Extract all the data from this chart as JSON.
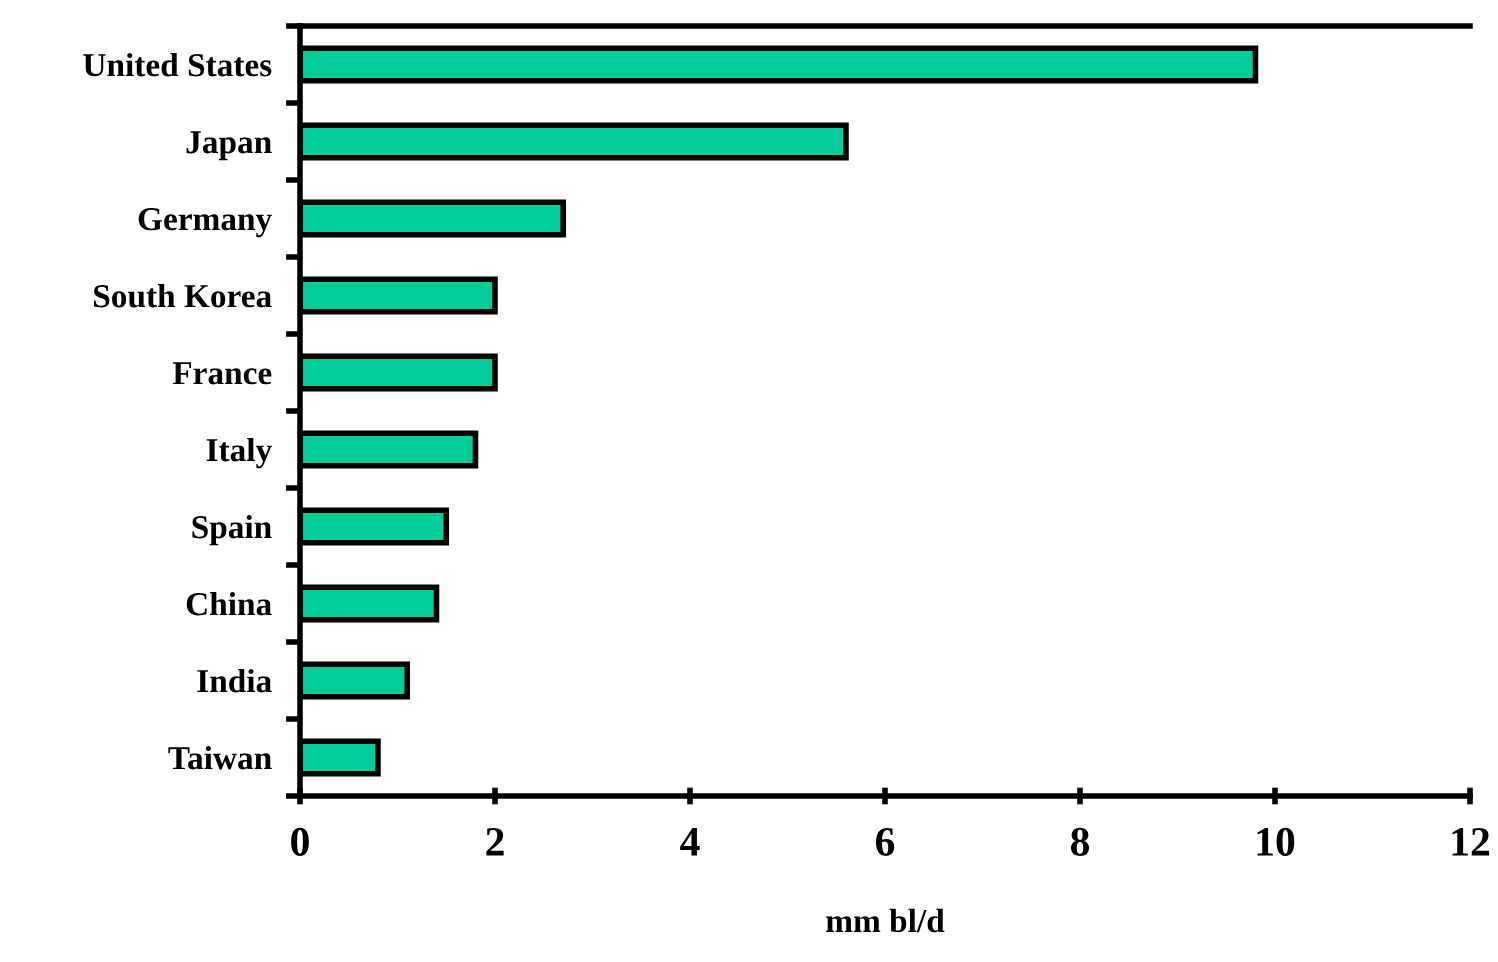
{
  "chart_data": {
    "type": "bar",
    "orientation": "horizontal",
    "xlabel": "mm bl/d",
    "categories": [
      "United States",
      "Japan",
      "Germany",
      "South Korea",
      "France",
      "Italy",
      "Spain",
      "China",
      "India",
      "Taiwan"
    ],
    "values": [
      9.8,
      5.6,
      2.7,
      2.0,
      2.0,
      1.8,
      1.5,
      1.4,
      1.1,
      0.8
    ],
    "color": "#00cc99",
    "xlim": [
      0,
      12
    ],
    "xticks": [
      0,
      2,
      4,
      6,
      8,
      10,
      12
    ],
    "grid": false,
    "legend": false
  }
}
